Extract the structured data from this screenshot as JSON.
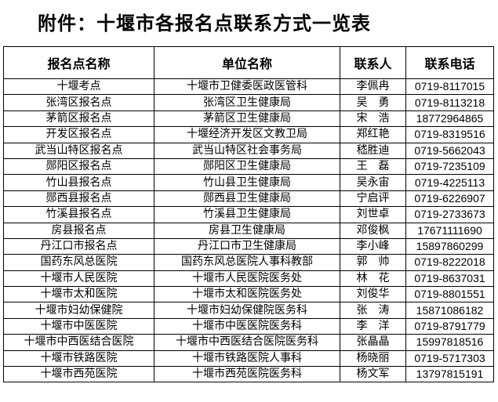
{
  "title": "附件：十堰市各报名点联系方式一览表",
  "table": {
    "headers": [
      "报名点名称",
      "单位名称",
      "联系人",
      "联系电话"
    ],
    "rows": [
      [
        "十堰考点",
        "十堰市卫健委医政医管科",
        "李佩冉",
        "0719-8117015"
      ],
      [
        "张湾区报名点",
        "张湾区卫生健康局",
        "吴　勇",
        "0719-8113218"
      ],
      [
        "茅箭区报名点",
        "茅箭区卫生健康局",
        "宋　浩",
        "18772964865"
      ],
      [
        "开发区报名点",
        "十堰经济开发区文教卫局",
        "郑红艳",
        "0719-8319516"
      ],
      [
        "武当山特区报名点",
        "武当山特区社会事务局",
        "嵇胜迪",
        "0719-5662043"
      ],
      [
        "郧阳区报名点",
        "郧阳区卫生健康局",
        "王　磊",
        "0719-7235109"
      ],
      [
        "竹山县报名点",
        "竹山县卫生健康局",
        "吴永宙",
        "0719-4225113"
      ],
      [
        "郧西县报名点",
        "郧西县卫生健康局",
        "宁启评",
        "0719-6226907"
      ],
      [
        "竹溪县报名点",
        "竹溪县卫生健康局",
        "刘世卓",
        "0719-2733673"
      ],
      [
        "房县报名点",
        "房县卫生健康局",
        "邓俊枫",
        "17671111690"
      ],
      [
        "丹江口市报名点",
        "丹江口市卫生健康局",
        "李小峰",
        "15897860299"
      ],
      [
        "国药东风总医院",
        "国药东风总医院人事科教部",
        "郭　帅",
        "0719-8222018"
      ],
      [
        "十堰市人民医院",
        "十堰市人民医院医务处",
        "林　花",
        "0719-8637031"
      ],
      [
        "十堰市太和医院",
        "十堰市太和医院医务处",
        "刘俊华",
        "0719-8801551"
      ],
      [
        "十堰市妇幼保健院",
        "十堰市妇幼保健院医务科",
        "张　涛",
        "15871086182"
      ],
      [
        "十堰市中医医院",
        "十堰市中医医院医务科",
        "李　洋",
        "0719-8791779"
      ],
      [
        "十堰市中西医结合医院",
        "十堰市中西医结合医院医务科",
        "张晶晶",
        "15997818516"
      ],
      [
        "十堰市铁路医院",
        "十堰市铁路医院人事科",
        "杨晓丽",
        "0719-5717303"
      ],
      [
        "十堰市西苑医院",
        "十堰市西苑医院医务科",
        "杨文军",
        "13797815191"
      ]
    ]
  }
}
